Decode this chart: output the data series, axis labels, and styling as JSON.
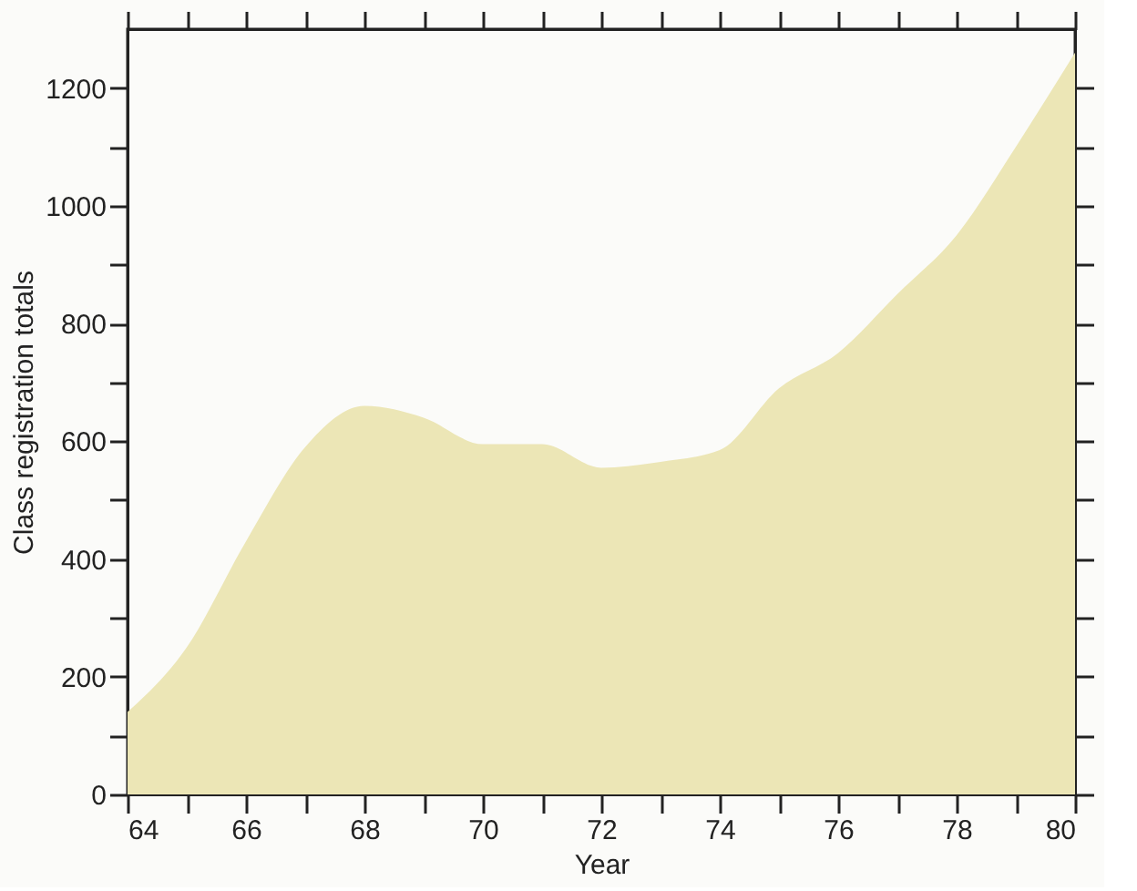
{
  "chart_data": {
    "type": "area",
    "xlabel": "Year",
    "ylabel": "Class registration totals",
    "x": [
      64,
      65,
      66,
      67,
      68,
      69,
      70,
      71,
      72,
      73,
      74,
      75,
      76,
      77,
      78,
      79,
      80
    ],
    "series": [
      {
        "color": "#ece6b6",
        "values": [
          140,
          250,
          430,
          590,
          660,
          640,
          595,
          595,
          555,
          565,
          585,
          690,
          750,
          850,
          950,
          1100,
          1260
        ]
      }
    ],
    "xlim": [
      64,
      80
    ],
    "ylim": [
      0,
      1300
    ],
    "xticks": [
      64,
      {
        "value": 65,
        "label": null
      },
      66,
      {
        "value": 67,
        "label": null
      },
      68,
      {
        "value": 69,
        "label": null
      },
      70,
      {
        "value": 71,
        "label": null
      },
      72,
      {
        "value": 73,
        "label": null
      },
      74,
      {
        "value": 75,
        "label": null
      },
      76,
      {
        "value": 77,
        "label": null
      },
      78,
      {
        "value": 79,
        "label": null
      },
      80
    ],
    "yticks": [
      0,
      {
        "value": 100,
        "label": null
      },
      200,
      {
        "value": 300,
        "label": null
      },
      400,
      {
        "value": 500,
        "label": null
      },
      600,
      {
        "value": 700,
        "label": null
      },
      800,
      {
        "value": 900,
        "label": null
      },
      1000,
      {
        "value": 1100,
        "label": null
      },
      1200
    ],
    "grid": false
  }
}
